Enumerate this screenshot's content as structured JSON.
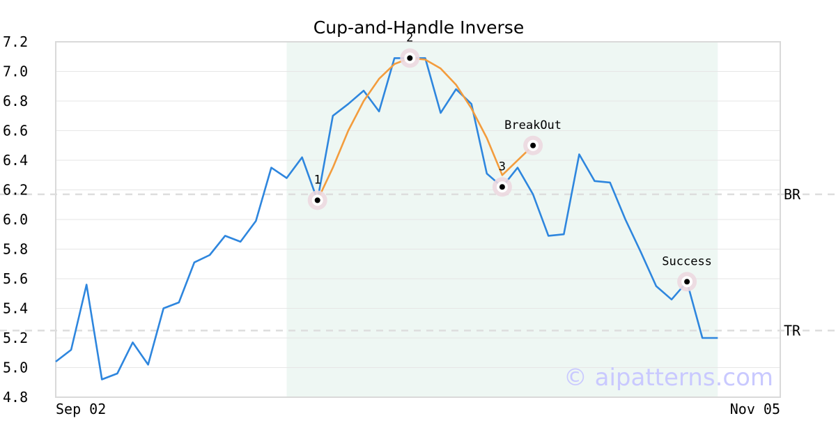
{
  "chart_data": {
    "type": "line",
    "title": "Cup-and-Handle Inverse",
    "xlabel": "",
    "ylabel": "",
    "ylim": [
      4.8,
      7.2
    ],
    "y_ticks": [
      "4.8",
      "5.0",
      "5.2",
      "5.4",
      "5.6",
      "5.8",
      "6.0",
      "6.2",
      "6.4",
      "6.6",
      "6.8",
      "7.0",
      "7.2"
    ],
    "x_tick_labels": [
      "Sep 02",
      "Nov 05"
    ],
    "grid": true,
    "series": [
      {
        "color": "#2e86de",
        "values": [
          5.04,
          5.12,
          5.56,
          4.92,
          4.96,
          5.17,
          5.02,
          5.4,
          5.44,
          5.71,
          5.76,
          5.89,
          5.85,
          5.99,
          6.35,
          6.28,
          6.42,
          6.13,
          6.7,
          6.78,
          6.87,
          6.73,
          7.09,
          7.09,
          7.09,
          6.72,
          6.88,
          6.78,
          6.31,
          6.22,
          6.35,
          6.17,
          5.89,
          5.9,
          6.44,
          6.26,
          6.25,
          6.0,
          5.78,
          5.55,
          5.46,
          5.58,
          5.2,
          5.2
        ]
      },
      {
        "color": "#f39c3d",
        "x_index": [
          17,
          18,
          19,
          20,
          21,
          22,
          23,
          24,
          25,
          26,
          27,
          28,
          29,
          31
        ],
        "values": [
          6.13,
          6.35,
          6.6,
          6.8,
          6.95,
          7.05,
          7.09,
          7.08,
          7.02,
          6.91,
          6.75,
          6.55,
          6.3,
          6.5
        ]
      }
    ],
    "levels": [
      {
        "label": "BR",
        "value": 6.17
      },
      {
        "label": "TR",
        "value": 5.25
      }
    ],
    "highlight_range": {
      "from_index": 15,
      "to_index": 43,
      "color": "#eef7f3"
    },
    "annotations": [
      {
        "label": "1",
        "index": 17,
        "value": 6.13
      },
      {
        "label": "2",
        "index": 23,
        "value": 7.09
      },
      {
        "label": "3",
        "index": 29,
        "value": 6.22
      },
      {
        "label": "BreakOut",
        "index": 31,
        "value": 6.5
      },
      {
        "label": "Success",
        "index": 41,
        "value": 5.58
      }
    ],
    "watermark": "© aipatterns.com"
  }
}
